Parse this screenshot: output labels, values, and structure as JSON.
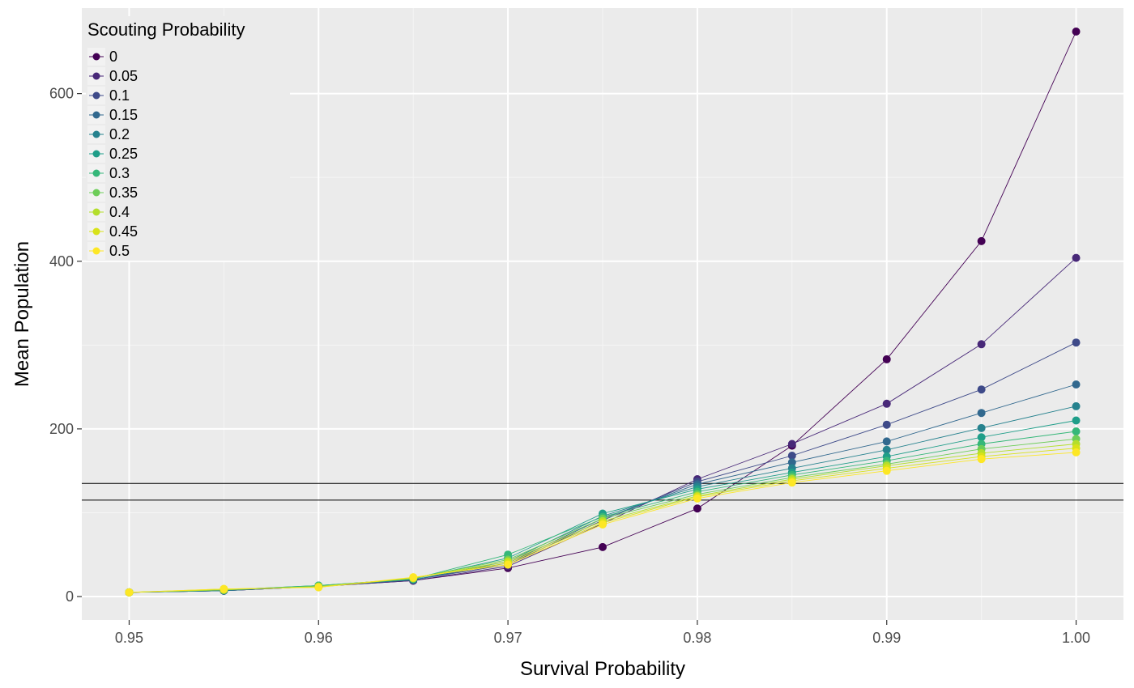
{
  "chart_data": {
    "type": "line",
    "xlabel": "Survival Probability",
    "ylabel": "Mean Population",
    "xlim": [
      0.9475,
      1.0025
    ],
    "ylim": [
      -28,
      702
    ],
    "x_ticks": [
      0.95,
      0.96,
      0.97,
      0.98,
      0.99,
      1.0
    ],
    "x_tick_labels": [
      "0.95",
      "0.96",
      "0.97",
      "0.98",
      "0.99",
      "1.00"
    ],
    "y_ticks": [
      0,
      200,
      400,
      600
    ],
    "y_tick_labels": [
      "0",
      "200",
      "400",
      "600"
    ],
    "grid": true,
    "legend": {
      "title": "Scouting Probability",
      "placement": "top-left"
    },
    "reference_lines_y": [
      135,
      115
    ],
    "x": [
      0.95,
      0.955,
      0.96,
      0.965,
      0.97,
      0.975,
      0.98,
      0.985,
      0.99,
      0.995,
      1.0
    ],
    "series": [
      {
        "name": "0",
        "color": "#440154",
        "values": [
          5,
          7,
          12,
          19,
          34,
          59,
          105,
          180,
          283,
          424,
          674
        ]
      },
      {
        "name": "0.05",
        "color": "#482878",
        "values": [
          5,
          7,
          12,
          19,
          36,
          87,
          140,
          182,
          230,
          301,
          404
        ]
      },
      {
        "name": "0.1",
        "color": "#3E4A89",
        "values": [
          5,
          7,
          12,
          20,
          38,
          91,
          137,
          168,
          205,
          247,
          303
        ]
      },
      {
        "name": "0.15",
        "color": "#31688E",
        "values": [
          5,
          7,
          12,
          20,
          40,
          93,
          134,
          160,
          185,
          219,
          253
        ]
      },
      {
        "name": "0.2",
        "color": "#26828E",
        "values": [
          5,
          7,
          13,
          20,
          42,
          96,
          131,
          153,
          175,
          201,
          227
        ]
      },
      {
        "name": "0.25",
        "color": "#1F9E89",
        "values": [
          5,
          8,
          13,
          21,
          46,
          99,
          128,
          148,
          167,
          190,
          210
        ]
      },
      {
        "name": "0.3",
        "color": "#35B779",
        "values": [
          5,
          8,
          13,
          21,
          50,
          95,
          125,
          145,
          162,
          182,
          197
        ]
      },
      {
        "name": "0.35",
        "color": "#6DCD59",
        "values": [
          5,
          8,
          12,
          22,
          44,
          93,
          122,
          142,
          158,
          176,
          188
        ]
      },
      {
        "name": "0.4",
        "color": "#B4DE2C",
        "values": [
          5,
          8,
          12,
          22,
          42,
          90,
          120,
          140,
          156,
          171,
          182
        ]
      },
      {
        "name": "0.45",
        "color": "#D8E219",
        "values": [
          5,
          9,
          11,
          22,
          40,
          88,
          119,
          138,
          153,
          167,
          177
        ]
      },
      {
        "name": "0.5",
        "color": "#FDE725",
        "values": [
          5,
          9,
          11,
          23,
          38,
          86,
          117,
          136,
          150,
          164,
          172
        ]
      }
    ]
  }
}
